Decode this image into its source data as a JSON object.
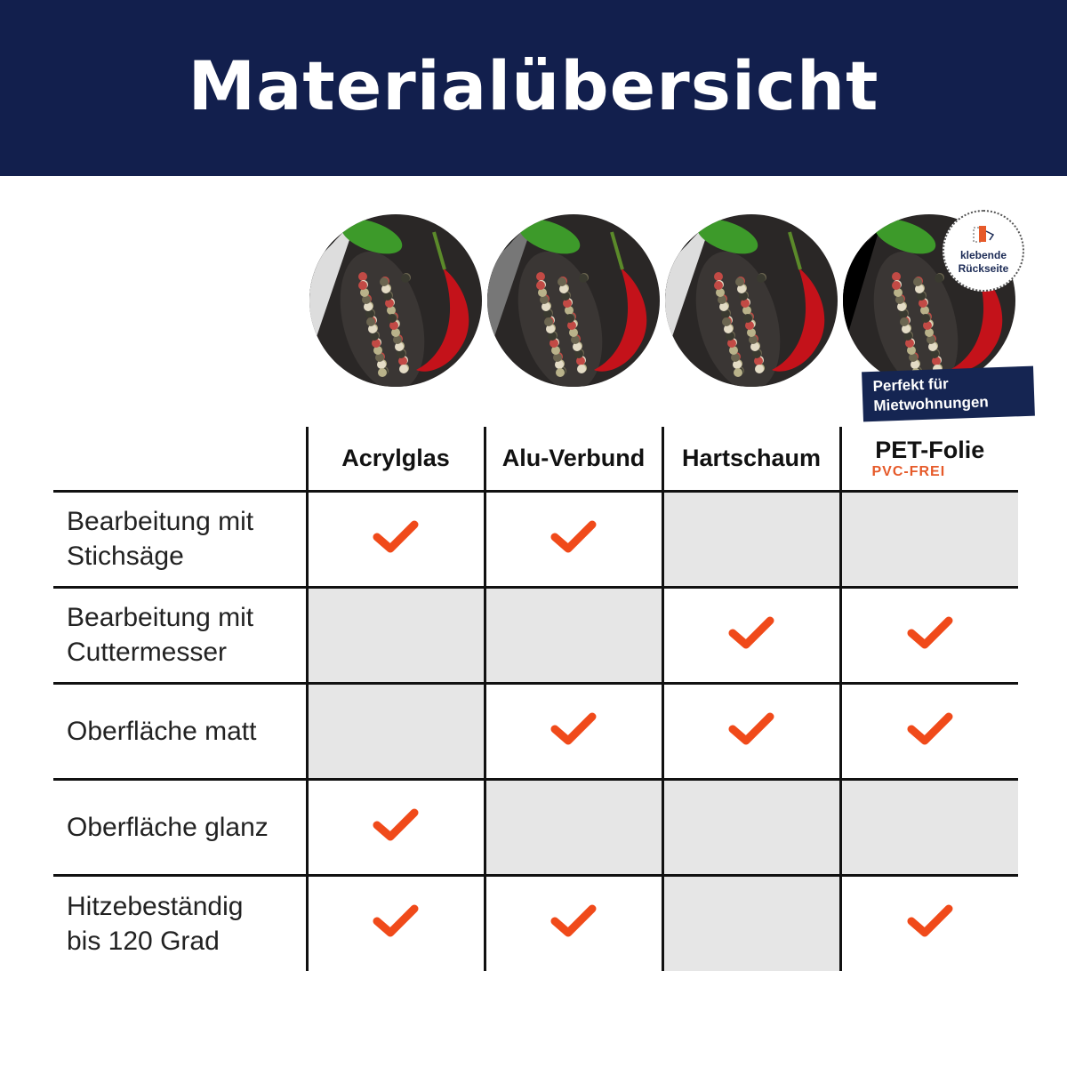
{
  "header": {
    "title": "Materialübersicht"
  },
  "badge": {
    "line1": "klebende",
    "line2": "Rückseite",
    "icon": "adhesive-back-icon"
  },
  "ribbon": {
    "line1": "Perfekt für",
    "line2": "Mietwohnungen"
  },
  "columns": [
    {
      "label": "Acrylglas"
    },
    {
      "label": "Alu-Verbund"
    },
    {
      "label": "Hartschaum"
    },
    {
      "label": "PET-Folie",
      "sub": "PVC-FREI"
    }
  ],
  "rows": [
    {
      "label_1": "Bearbeitung mit",
      "label_2": "Stichsäge",
      "values": [
        true,
        true,
        false,
        false
      ]
    },
    {
      "label_1": "Bearbeitung mit",
      "label_2": "Cuttermesser",
      "values": [
        false,
        false,
        true,
        true
      ]
    },
    {
      "label_1": "Oberfläche matt",
      "label_2": "",
      "values": [
        false,
        true,
        true,
        true
      ]
    },
    {
      "label_1": "Oberfläche glanz",
      "label_2": "",
      "values": [
        true,
        false,
        false,
        false
      ]
    },
    {
      "label_1": "Hitzebeständig",
      "label_2": "bis 120 Grad",
      "values": [
        true,
        true,
        false,
        true
      ]
    }
  ],
  "colors": {
    "navy": "#121f4d",
    "check": "#f04a1a",
    "gray_cell": "#e6e6e6",
    "accent": "#e65a2a"
  }
}
